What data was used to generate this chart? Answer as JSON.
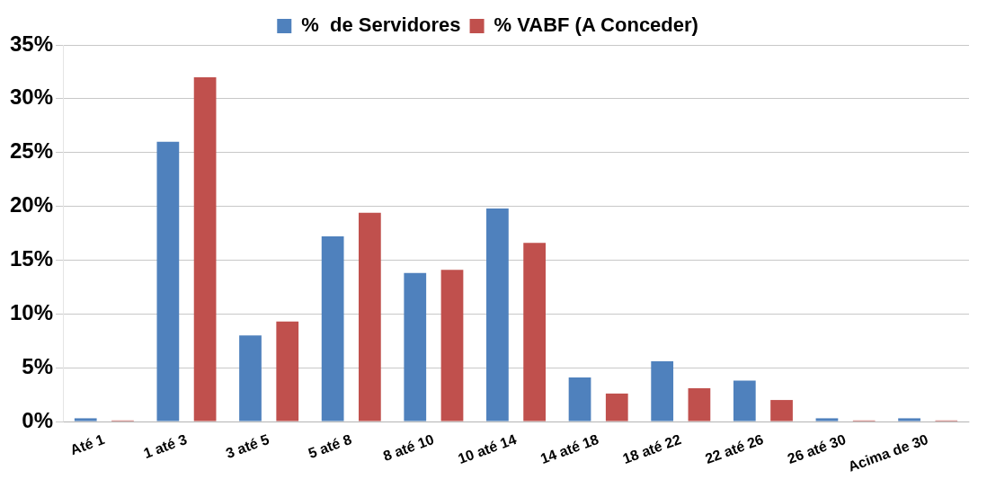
{
  "chart_data": {
    "type": "bar",
    "categories": [
      "Até 1",
      "1 até 3",
      "3 até 5",
      "5 até 8",
      "8 até 10",
      "10 até 14",
      "14 até 18",
      "18 até 22",
      "22 até 26",
      "26 até 30",
      "Acima de 30"
    ],
    "series": [
      {
        "name": "%  de Servidores",
        "color": "#4f81bd",
        "values": [
          0.3,
          26,
          8,
          17.2,
          13.8,
          19.8,
          4.1,
          5.6,
          3.8,
          0.3,
          0.3
        ]
      },
      {
        "name": "% VABF (A Conceder)",
        "color": "#c0504d",
        "values": [
          0.1,
          32,
          9.3,
          19.4,
          14.1,
          16.6,
          2.6,
          3.1,
          2,
          0.1,
          0.1
        ]
      }
    ],
    "ylim": [
      0,
      35
    ],
    "yticks": [
      {
        "value": 0,
        "label": "0%"
      },
      {
        "value": 5,
        "label": "5%"
      },
      {
        "value": 10,
        "label": "10%"
      },
      {
        "value": 15,
        "label": "15%"
      },
      {
        "value": 20,
        "label": "20%"
      },
      {
        "value": 25,
        "label": "25%"
      },
      {
        "value": 30,
        "label": "30%"
      },
      {
        "value": 35,
        "label": "35%"
      }
    ],
    "grid": "y",
    "legend": "top"
  }
}
